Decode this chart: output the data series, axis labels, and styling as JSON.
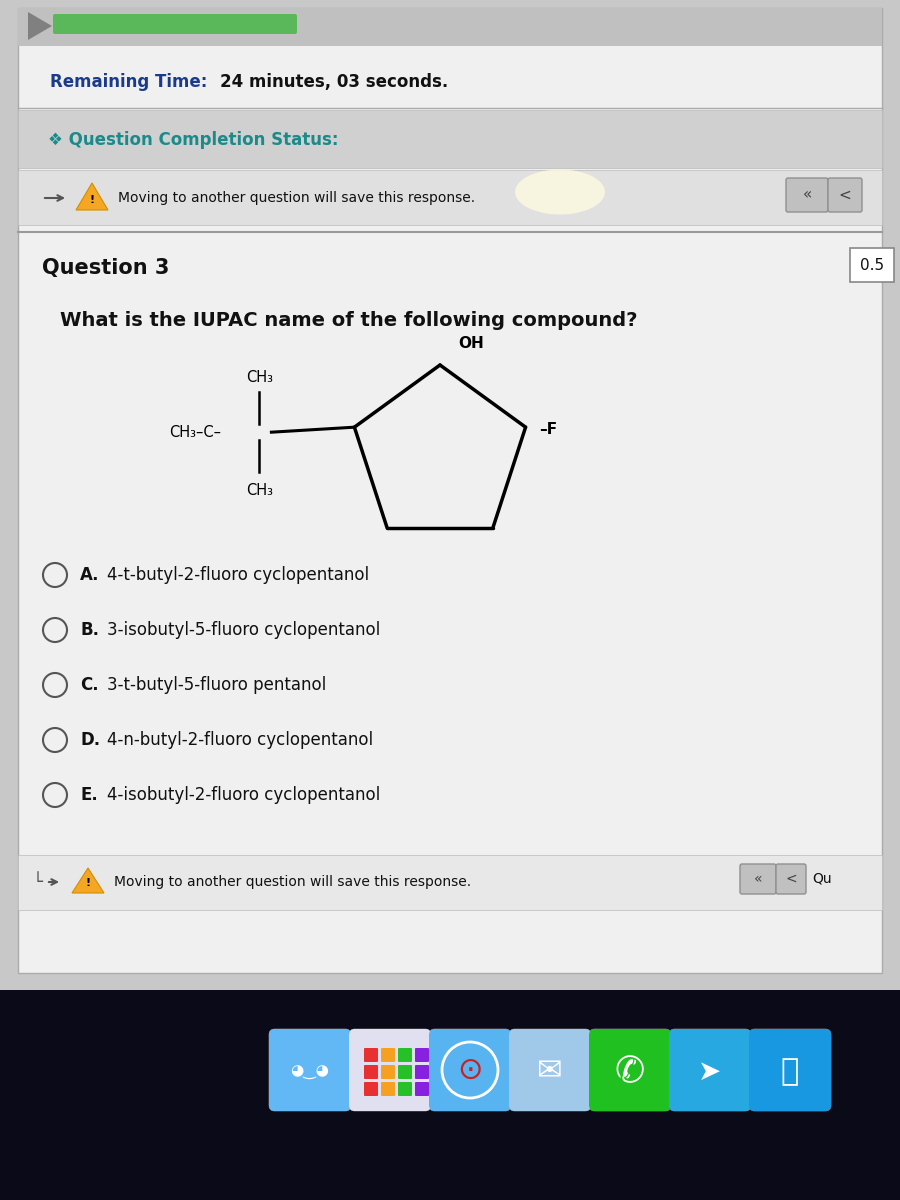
{
  "remaining_time_prefix": "Remaining Time: ",
  "remaining_time_bold": "24 minutes, 03 seconds.",
  "question_completion": "❖ Question Completion Status:",
  "warning_text": "Moving to another question will save this response.",
  "question_num": "Question 3",
  "question_points": "0.5",
  "question_text": "What is the IUPAC name of the following compound?",
  "options": [
    {
      "label": "A.",
      "text": "4-t-butyl-2-fluoro cyclopentanol"
    },
    {
      "label": "B.",
      "text": "3-isobutyl-5-fluoro cyclopentanol"
    },
    {
      "label": "C.",
      "text": "3-t-butyl-5-fluoro pentanol"
    },
    {
      "label": "D.",
      "text": "4-n-butyl-2-fluoro cyclopentanol"
    },
    {
      "label": "E.",
      "text": "4-isobutyl-2-fluoro cyclopentanol"
    }
  ],
  "footer_warning": "Moving to another question will save this response.",
  "bg_color": "#c8c8c8",
  "header_bg": "#bebebe",
  "content_bg": "#f0f0f0",
  "white_bg": "#f8f8f8",
  "teal_color": "#1a8a8a",
  "dark_text": "#111111",
  "blue_text": "#1a3a8a",
  "progress_bar_color": "#5ab85a",
  "dock_bg": "#0a0a18",
  "warn_bg": "#e8e8e8",
  "sep_color": "#aaaaaa"
}
